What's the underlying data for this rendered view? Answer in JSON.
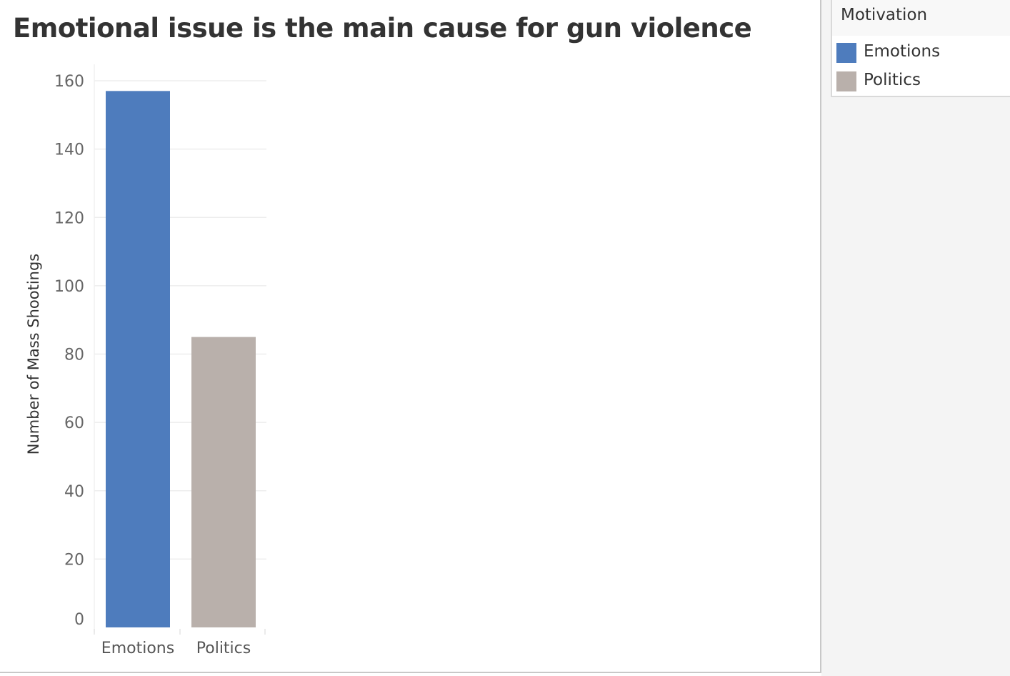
{
  "legend": {
    "title": "Motivation",
    "items": [
      {
        "label": "Emotions",
        "color": "#4e7cbd"
      },
      {
        "label": "Politics",
        "color": "#b9b0ab"
      }
    ]
  },
  "chart_data": {
    "type": "bar",
    "title": "Emotional issue is the main cause for gun violence",
    "xlabel": "",
    "ylabel": "Number of Mass Shootings",
    "categories": [
      "Emotions",
      "Politics"
    ],
    "values": [
      157,
      85
    ],
    "colors": [
      "#4e7cbd",
      "#b9b0ab"
    ],
    "ylim": [
      0,
      160
    ],
    "yticks": [
      0,
      20,
      40,
      60,
      80,
      100,
      120,
      140,
      160
    ],
    "grid": true,
    "legend_position": "top-right"
  }
}
